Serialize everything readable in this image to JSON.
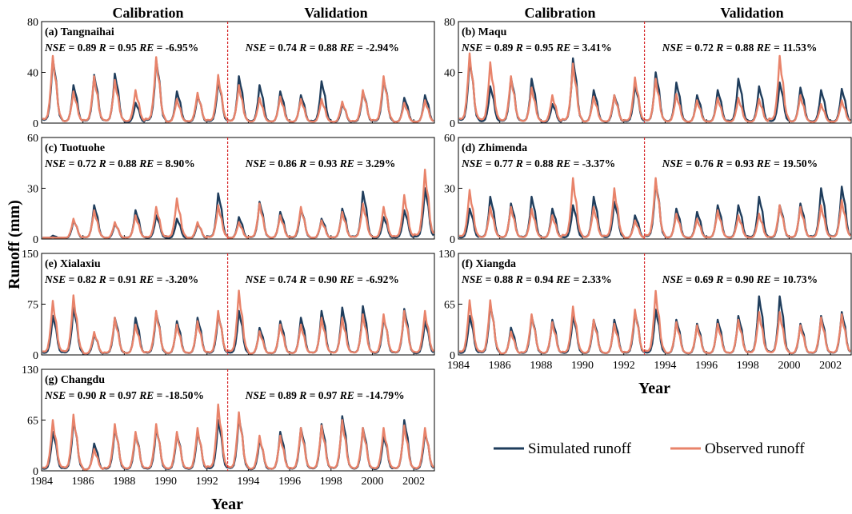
{
  "labels": {
    "calibration": "Calibration",
    "validation": "Validation",
    "x_axis": "Year",
    "y_axis": "Runoff (mm)"
  },
  "legend": [
    {
      "name": "Simulated runoff",
      "color": "#1f3d5c"
    },
    {
      "name": "Observed runoff",
      "color": "#e8836a"
    }
  ],
  "colors": {
    "simulated": "#1f3d5c",
    "observed": "#e8836a",
    "divider": "#d62728"
  },
  "chart_data": [
    {
      "type": "line",
      "panel": "a",
      "title": "(a) Tangnaihai",
      "ylim": [
        0,
        80
      ],
      "yticks": [
        0,
        40,
        80
      ],
      "xlim": [
        1984,
        2003
      ],
      "xticks": [
        1984,
        1986,
        1988,
        1990,
        1992,
        1994,
        1996,
        1998,
        2000,
        2002
      ],
      "divider_x": 1993,
      "calibration": {
        "NSE": "0.89",
        "R": "0.95",
        "RE": "-6.95%"
      },
      "validation": {
        "NSE": "0.74",
        "R": "0.88",
        "RE": "-2.94%"
      },
      "sim_peaks": [
        51,
        30,
        38,
        39,
        16,
        50,
        25,
        22,
        33,
        37,
        30,
        25,
        22,
        33,
        15,
        25,
        35,
        20,
        22
      ],
      "obs_peaks": [
        53,
        25,
        37,
        34,
        26,
        52,
        19,
        24,
        38,
        30,
        20,
        21,
        19,
        19,
        17,
        26,
        37,
        16,
        18
      ]
    },
    {
      "type": "line",
      "panel": "b",
      "title": "(b) Maqu",
      "ylim": [
        0,
        80
      ],
      "yticks": [
        0,
        40,
        80
      ],
      "xlim": [
        1984,
        2003
      ],
      "xticks": [
        1984,
        1986,
        1988,
        1990,
        1992,
        1994,
        1996,
        1998,
        2000,
        2002
      ],
      "divider_x": 1993,
      "calibration": {
        "NSE": "0.89",
        "R": "0.95",
        "RE": "3.41%"
      },
      "validation": {
        "NSE": "0.72",
        "R": "0.88",
        "RE": "11.53%"
      },
      "sim_peaks": [
        50,
        29,
        36,
        35,
        15,
        51,
        26,
        22,
        30,
        40,
        32,
        22,
        26,
        35,
        29,
        32,
        28,
        26,
        27
      ],
      "obs_peaks": [
        55,
        48,
        37,
        28,
        22,
        47,
        21,
        22,
        36,
        35,
        23,
        18,
        20,
        20,
        19,
        53,
        22,
        15,
        18
      ]
    },
    {
      "type": "line",
      "panel": "c",
      "title": "(c) Tuotuohe",
      "ylim": [
        0,
        60
      ],
      "yticks": [
        0,
        30,
        60
      ],
      "xlim": [
        1984,
        2003
      ],
      "xticks": [
        1984,
        1986,
        1988,
        1990,
        1992,
        1994,
        1996,
        1998,
        2000,
        2002
      ],
      "divider_x": 1993,
      "calibration": {
        "NSE": "0.72",
        "R": "0.88",
        "RE": "8.90%"
      },
      "validation": {
        "NSE": "0.86",
        "R": "0.93",
        "RE": "3.29%"
      },
      "sim_peaks": [
        2,
        11,
        20,
        9,
        17,
        14,
        12,
        9,
        27,
        13,
        22,
        16,
        18,
        12,
        18,
        28,
        13,
        17,
        30
      ],
      "obs_peaks": [
        1,
        12,
        17,
        10,
        14,
        19,
        24,
        10,
        20,
        10,
        21,
        14,
        19,
        11,
        16,
        21,
        19,
        26,
        41
      ]
    },
    {
      "type": "line",
      "panel": "d",
      "title": "(d) Zhimenda",
      "ylim": [
        0,
        60
      ],
      "yticks": [
        0,
        30,
        60
      ],
      "xlim": [
        1984,
        2003
      ],
      "xticks": [
        1984,
        1986,
        1988,
        1990,
        1992,
        1994,
        1996,
        1998,
        2000,
        2002
      ],
      "divider_x": 1993,
      "calibration": {
        "NSE": "0.77",
        "R": "0.88",
        "RE": "-3.37%"
      },
      "validation": {
        "NSE": "0.76",
        "R": "0.93",
        "RE": "19.50%"
      },
      "sim_peaks": [
        18,
        25,
        21,
        25,
        18,
        20,
        25,
        22,
        14,
        34,
        18,
        16,
        20,
        20,
        25,
        20,
        21,
        30,
        31
      ],
      "obs_peaks": [
        29,
        19,
        19,
        18,
        14,
        36,
        19,
        30,
        11,
        36,
        15,
        12,
        17,
        14,
        15,
        20,
        19,
        20,
        23
      ]
    },
    {
      "type": "line",
      "panel": "e",
      "title": "(e) Xialaxiu",
      "ylim": [
        0,
        150
      ],
      "yticks": [
        0,
        75,
        150
      ],
      "xlim": [
        1984,
        2003
      ],
      "xticks": [
        1984,
        1986,
        1988,
        1990,
        1992,
        1994,
        1996,
        1998,
        2000,
        2002
      ],
      "divider_x": 1993,
      "calibration": {
        "NSE": "0.82",
        "R": "0.91",
        "RE": "-3.20%"
      },
      "validation": {
        "NSE": "0.74",
        "R": "0.90",
        "RE": "-6.92%"
      },
      "sim_peaks": [
        58,
        70,
        30,
        55,
        55,
        63,
        50,
        55,
        60,
        65,
        40,
        50,
        55,
        65,
        70,
        72,
        55,
        68,
        50
      ],
      "obs_peaks": [
        80,
        88,
        34,
        55,
        45,
        65,
        45,
        50,
        65,
        95,
        35,
        45,
        45,
        55,
        55,
        60,
        60,
        65,
        65
      ]
    },
    {
      "type": "line",
      "panel": "f",
      "title": "(f) Xiangda",
      "ylim": [
        0,
        130
      ],
      "yticks": [
        0,
        65,
        130
      ],
      "xlim": [
        1984,
        2003
      ],
      "xticks": [
        1984,
        1986,
        1988,
        1990,
        1992,
        1994,
        1996,
        1998,
        2000,
        2002
      ],
      "divider_x": 1993,
      "calibration": {
        "NSE": "0.88",
        "R": "0.94",
        "RE": "2.33%"
      },
      "validation": {
        "NSE": "0.69",
        "R": "0.90",
        "RE": "10.73%"
      },
      "sim_peaks": [
        50,
        65,
        35,
        50,
        45,
        50,
        45,
        45,
        55,
        58,
        45,
        40,
        45,
        50,
        75,
        75,
        40,
        50,
        55
      ],
      "obs_peaks": [
        70,
        70,
        30,
        52,
        42,
        62,
        45,
        40,
        58,
        82,
        42,
        38,
        40,
        45,
        55,
        55,
        38,
        48,
        52
      ]
    },
    {
      "type": "line",
      "panel": "g",
      "title": "(g) Changdu",
      "ylim": [
        0,
        130
      ],
      "yticks": [
        0,
        65,
        130
      ],
      "xlim": [
        1984,
        2003
      ],
      "xticks": [
        1984,
        1986,
        1988,
        1990,
        1992,
        1994,
        1996,
        1998,
        2000,
        2002
      ],
      "divider_x": 1993,
      "calibration": {
        "NSE": "0.90",
        "R": "0.97",
        "RE": "-18.50%"
      },
      "validation": {
        "NSE": "0.89",
        "R": "0.97",
        "RE": "-14.79%"
      },
      "sim_peaks": [
        50,
        65,
        35,
        55,
        48,
        55,
        48,
        50,
        65,
        70,
        40,
        50,
        55,
        60,
        70,
        55,
        45,
        65,
        50
      ],
      "obs_peaks": [
        65,
        72,
        28,
        60,
        50,
        60,
        50,
        55,
        85,
        75,
        45,
        45,
        55,
        58,
        65,
        55,
        55,
        58,
        55
      ]
    }
  ]
}
